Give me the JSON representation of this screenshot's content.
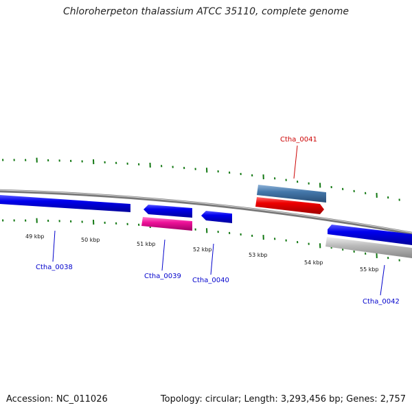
{
  "title": "Chloroherpeton thalassium ATCC 35110, complete genome",
  "footer": {
    "accession": "Accession: NC_011026",
    "summary": "Topology: circular; Length: 3,293,456 bp; Genes: 2,757"
  },
  "ticks": [
    {
      "label": "49 kbp"
    },
    {
      "label": "50 kbp"
    },
    {
      "label": "51 kbp"
    },
    {
      "label": "52 kbp"
    },
    {
      "label": "53 kbp"
    },
    {
      "label": "54 kbp"
    },
    {
      "label": "55 kbp"
    }
  ],
  "genes": [
    {
      "name": "Ctha_0038",
      "strand": "forward",
      "color": "#0000ee"
    },
    {
      "name": "Ctha_0039",
      "strand": "reverse",
      "color": "#0000ee",
      "feature_color": "#ee1199"
    },
    {
      "name": "Ctha_0040",
      "strand": "reverse",
      "color": "#0000ee"
    },
    {
      "name": "Ctha_0041",
      "strand": "forward",
      "color": "#ee0000",
      "feature_color": "#4477aa"
    },
    {
      "name": "Ctha_0042",
      "strand": "forward",
      "color": "#0000ee",
      "feature_color": "#bbbbbb"
    }
  ],
  "colors": {
    "backbone": "#777777",
    "tick": "#117711",
    "label_blue": "#0000cc",
    "label_red": "#cc0000"
  }
}
